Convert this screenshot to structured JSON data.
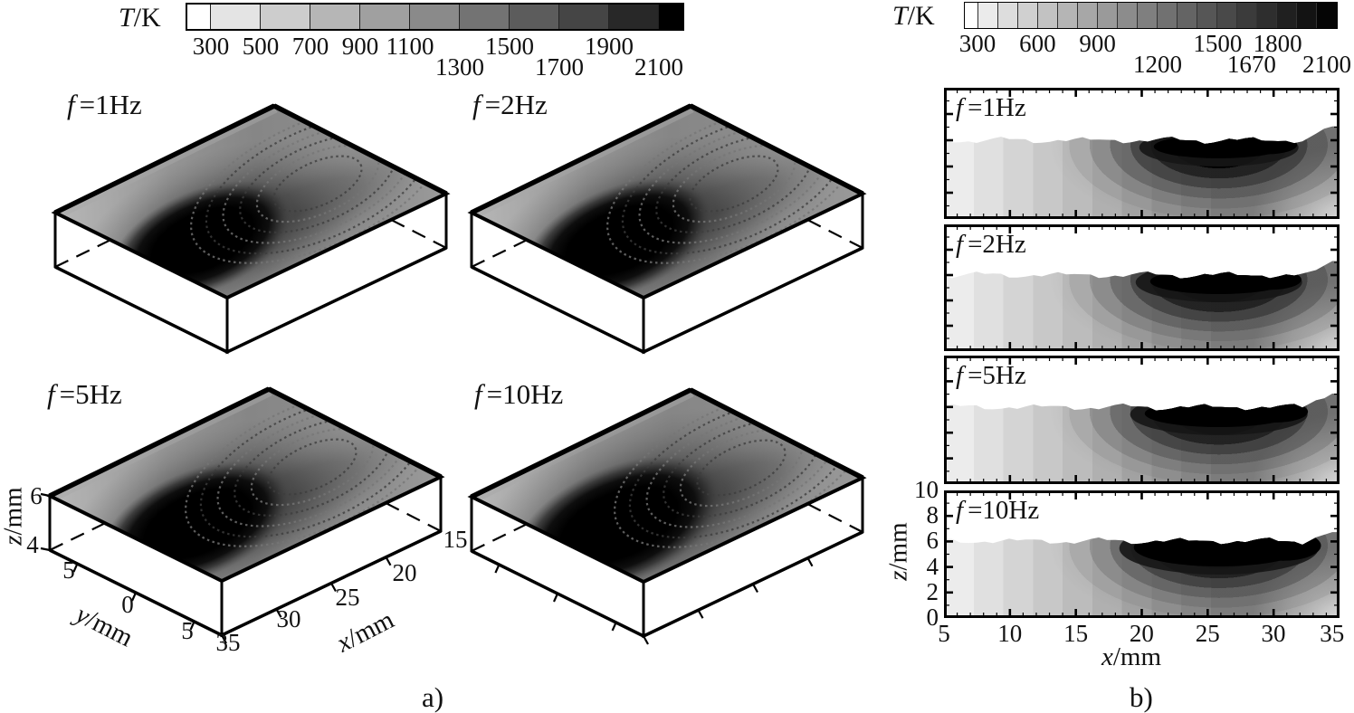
{
  "colorbars": {
    "left": {
      "title_prefix": "T",
      "title_suffix": "/K",
      "ticks": [
        {
          "label": "300",
          "row": 1
        },
        {
          "label": "500",
          "row": 1
        },
        {
          "label": "700",
          "row": 1
        },
        {
          "label": "900",
          "row": 1
        },
        {
          "label": "1100",
          "row": 1
        },
        {
          "label": "1300",
          "row": 2
        },
        {
          "label": "1500",
          "row": 1
        },
        {
          "label": "1700",
          "row": 2
        },
        {
          "label": "1900",
          "row": 1
        },
        {
          "label": "2100",
          "row": 2
        }
      ]
    },
    "right": {
      "title_prefix": "T",
      "title_suffix": "/K",
      "ticks": [
        {
          "label": "300",
          "row": 1
        },
        {
          "label": "600",
          "row": 1
        },
        {
          "label": "900",
          "row": 1
        },
        {
          "label": "1200",
          "row": 2
        },
        {
          "label": "1500",
          "row": 1
        },
        {
          "label": "1670",
          "row": 2
        },
        {
          "label": "1800",
          "row": 1
        },
        {
          "label": "2100",
          "row": 2
        }
      ]
    }
  },
  "panels_a": [
    {
      "prefix": "f",
      "suffix": "=1Hz"
    },
    {
      "prefix": "f",
      "suffix": "=2Hz"
    },
    {
      "prefix": "f",
      "suffix": "=5Hz"
    },
    {
      "prefix": "f",
      "suffix": "=10Hz"
    }
  ],
  "panels_b": [
    {
      "prefix": "f",
      "suffix": "=1Hz"
    },
    {
      "prefix": "f",
      "suffix": "=2Hz"
    },
    {
      "prefix": "f",
      "suffix": "=5Hz"
    },
    {
      "prefix": "f",
      "suffix": "=10Hz"
    }
  ],
  "axes_a": {
    "z": {
      "prefix": "z",
      "suffix": "/mm",
      "ticks": [
        "6",
        "4"
      ]
    },
    "y": {
      "prefix": "y",
      "suffix": "/mm",
      "ticks": [
        "5",
        "0",
        "5"
      ]
    },
    "x": {
      "prefix": "x",
      "suffix": "/mm",
      "ticks": [
        "35",
        "30",
        "25",
        "20",
        "15"
      ]
    }
  },
  "axes_b": {
    "z": {
      "prefix": "z",
      "suffix": "/mm",
      "ticks": [
        "10",
        "8",
        "6",
        "4",
        "2",
        "0"
      ]
    },
    "x": {
      "prefix": "x",
      "suffix": "/mm",
      "ticks": [
        "5",
        "10",
        "15",
        "20",
        "25",
        "30",
        "35"
      ]
    }
  },
  "captions": {
    "a": "a)",
    "b": "b)"
  },
  "chart_data": [
    {
      "id": "a",
      "type": "heatmap",
      "subtype": "3d-surface-contour-boxes",
      "title": "Temperature field on workpiece surface for different oscillation frequencies",
      "panels": [
        {
          "label": "f=1Hz",
          "frequency_hz": 1
        },
        {
          "label": "f=2Hz",
          "frequency_hz": 2
        },
        {
          "label": "f=5Hz",
          "frequency_hz": 5
        },
        {
          "label": "f=10Hz",
          "frequency_hz": 10
        }
      ],
      "x_axis": {
        "label": "x/mm",
        "tick_labels": [
          35,
          30,
          25,
          20,
          15
        ],
        "range": [
          15,
          35
        ]
      },
      "y_axis": {
        "label": "y/mm",
        "tick_labels": [
          5,
          0,
          5
        ],
        "range": [
          -5,
          5
        ]
      },
      "z_axis": {
        "label": "z/mm",
        "tick_labels": [
          6,
          4
        ],
        "range": [
          4,
          6
        ]
      },
      "colorbar": {
        "label": "T/K",
        "tick_values": [
          300,
          500,
          700,
          900,
          1100,
          1300,
          1500,
          1700,
          1900,
          2100
        ],
        "range": [
          300,
          2100
        ],
        "scale": "grayscale-white-to-black"
      },
      "features": "Each panel shows a thin 3D slab; a black molten zone (T>2100K) lies on the top surface centered near x≈28mm, y≈0, surrounded by gray isotherm bands and speckled ripple arcs trailing toward x≈20mm; hidden bottom edges drawn dashed.",
      "legend_position": "top colorbar",
      "grid": false
    },
    {
      "id": "b",
      "type": "heatmap",
      "subtype": "2d-longitudinal-cross-sections",
      "title": "Temperature field in longitudinal section (y=0) for different oscillation frequencies",
      "panels": [
        {
          "label": "f=1Hz",
          "frequency_hz": 1
        },
        {
          "label": "f=2Hz",
          "frequency_hz": 2
        },
        {
          "label": "f=5Hz",
          "frequency_hz": 5
        },
        {
          "label": "f=10Hz",
          "frequency_hz": 10
        }
      ],
      "x_axis": {
        "label": "x/mm",
        "tick_labels": [
          5,
          10,
          15,
          20,
          25,
          30,
          35
        ],
        "range": [
          5,
          35
        ]
      },
      "z_axis": {
        "label": "z/mm",
        "tick_labels": [
          0,
          2,
          4,
          6,
          8,
          10
        ],
        "range": [
          0,
          10
        ]
      },
      "colorbar": {
        "label": "T/K",
        "tick_values": [
          300,
          600,
          900,
          1200,
          1500,
          1670,
          1800,
          2100
        ],
        "range": [
          300,
          2100
        ],
        "scale": "grayscale-white-to-black"
      },
      "features": "Material surface lies near z≈6mm (white above); isotherm bands lighten from right to left; black melt zone (T>2100K) just below the surface between x≈22mm and x≈33mm; temperatures fall toward bottom and toward x=5mm; 1670K isotherm marks the solidus.",
      "legend_position": "top colorbar",
      "grid": false
    }
  ]
}
